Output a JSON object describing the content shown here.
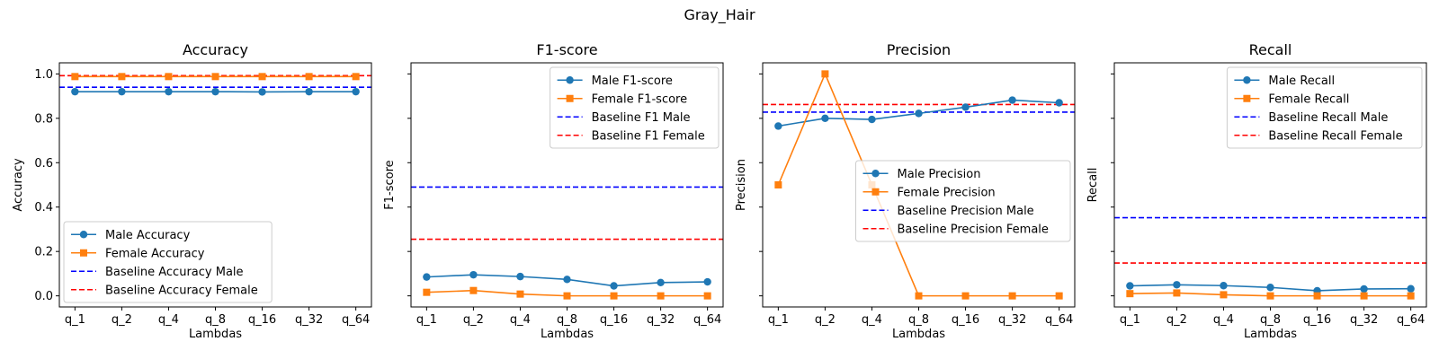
{
  "figure": {
    "suptitle": "Gray_Hair"
  },
  "chart_data": [
    {
      "type": "line",
      "title": "Accuracy",
      "xlabel": "Lambdas",
      "ylabel": "Accuracy",
      "categories": [
        "q_1",
        "q_2",
        "q_4",
        "q_8",
        "q_16",
        "q_32",
        "q_64"
      ],
      "ylim": [
        -0.05,
        1.05
      ],
      "yticks": [
        0.0,
        0.2,
        0.4,
        0.6,
        0.8,
        1.0
      ],
      "ytick_labels": [
        "0.0",
        "0.2",
        "0.4",
        "0.6",
        "0.8",
        "1.0"
      ],
      "legend_loc": "lower-left",
      "series": [
        {
          "name": "Male Accuracy",
          "values": [
            0.92,
            0.92,
            0.92,
            0.92,
            0.919,
            0.92,
            0.92
          ],
          "color": "#1f77b4",
          "marker": "circle"
        },
        {
          "name": "Female Accuracy",
          "values": [
            0.988,
            0.988,
            0.988,
            0.988,
            0.988,
            0.988,
            0.988
          ],
          "color": "#ff7f0e",
          "marker": "square"
        }
      ],
      "baselines": [
        {
          "name": "Baseline Accuracy Male",
          "value": 0.94,
          "color": "#0000ff"
        },
        {
          "name": "Baseline Accuracy Female",
          "value": 0.992,
          "color": "#ff0000"
        }
      ]
    },
    {
      "type": "line",
      "title": "F1-score",
      "xlabel": "Lambdas",
      "ylabel": "F1-score",
      "categories": [
        "q_1",
        "q_2",
        "q_4",
        "q_8",
        "q_16",
        "q_32",
        "q_64"
      ],
      "ylim": [
        -0.05,
        1.05
      ],
      "yticks": [
        0.0,
        0.2,
        0.4,
        0.6,
        0.8,
        1.0
      ],
      "ytick_labels": [
        "",
        "",
        "",
        "",
        "",
        ""
      ],
      "legend_loc": "upper-right",
      "series": [
        {
          "name": "Male F1-score",
          "values": [
            0.085,
            0.095,
            0.087,
            0.074,
            0.045,
            0.06,
            0.063
          ],
          "color": "#1f77b4",
          "marker": "circle"
        },
        {
          "name": "Female F1-score",
          "values": [
            0.016,
            0.024,
            0.008,
            0.0,
            0.0,
            0.0,
            0.0
          ],
          "color": "#ff7f0e",
          "marker": "square"
        }
      ],
      "baselines": [
        {
          "name": "Baseline F1 Male",
          "value": 0.49,
          "color": "#0000ff"
        },
        {
          "name": "Baseline F1 Female",
          "value": 0.255,
          "color": "#ff0000"
        }
      ]
    },
    {
      "type": "line",
      "title": "Precision",
      "xlabel": "Lambdas",
      "ylabel": "Precision",
      "categories": [
        "q_1",
        "q_2",
        "q_4",
        "q_8",
        "q_16",
        "q_32",
        "q_64"
      ],
      "ylim": [
        -0.05,
        1.05
      ],
      "yticks": [
        0.0,
        0.2,
        0.4,
        0.6,
        0.8,
        1.0
      ],
      "ytick_labels": [
        "",
        "",
        "",
        "",
        "",
        ""
      ],
      "legend_loc": "center-right",
      "series": [
        {
          "name": "Male Precision",
          "values": [
            0.765,
            0.8,
            0.795,
            0.822,
            0.85,
            0.882,
            0.87
          ],
          "color": "#1f77b4",
          "marker": "circle"
        },
        {
          "name": "Female Precision",
          "values": [
            0.5,
            1.0,
            0.5,
            0.0,
            0.0,
            0.0,
            0.0
          ],
          "color": "#ff7f0e",
          "marker": "square"
        }
      ],
      "baselines": [
        {
          "name": "Baseline Precision Male",
          "value": 0.828,
          "color": "#0000ff"
        },
        {
          "name": "Baseline Precision Female",
          "value": 0.862,
          "color": "#ff0000"
        }
      ]
    },
    {
      "type": "line",
      "title": "Recall",
      "xlabel": "Lambdas",
      "ylabel": "Recall",
      "categories": [
        "q_1",
        "q_2",
        "q_4",
        "q_8",
        "q_16",
        "q_32",
        "q_64"
      ],
      "ylim": [
        -0.05,
        1.05
      ],
      "yticks": [
        0.0,
        0.2,
        0.4,
        0.6,
        0.8,
        1.0
      ],
      "ytick_labels": [
        "",
        "",
        "",
        "",
        "",
        ""
      ],
      "legend_loc": "upper-right",
      "series": [
        {
          "name": "Male Recall",
          "values": [
            0.045,
            0.05,
            0.046,
            0.038,
            0.023,
            0.031,
            0.032
          ],
          "color": "#1f77b4",
          "marker": "circle"
        },
        {
          "name": "Female Recall",
          "values": [
            0.01,
            0.013,
            0.005,
            0.0,
            0.0,
            0.0,
            0.0
          ],
          "color": "#ff7f0e",
          "marker": "square"
        }
      ],
      "baselines": [
        {
          "name": "Baseline Recall Male",
          "value": 0.352,
          "color": "#0000ff"
        },
        {
          "name": "Baseline Recall Female",
          "value": 0.148,
          "color": "#ff0000"
        }
      ]
    }
  ]
}
